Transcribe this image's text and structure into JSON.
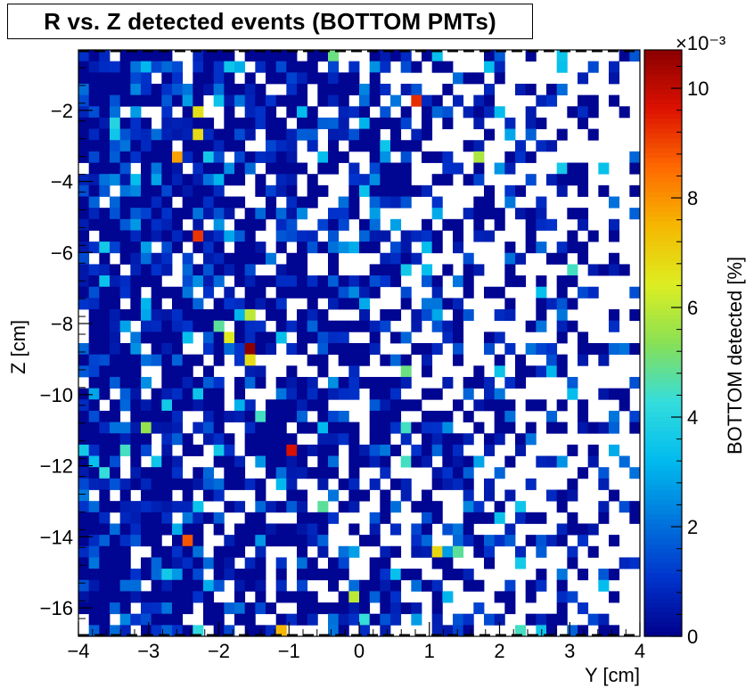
{
  "chart_data": {
    "type": "heatmap",
    "title": "R vs. Z detected events (BOTTOM PMTs)",
    "xlabel": "Y [cm]",
    "ylabel": "Z [cm]",
    "zlabel": "BOTTOM detected [%]",
    "z_multiplier": "×10⁻³",
    "xlim": [
      -4,
      4
    ],
    "ylim": [
      -16.8,
      -0.3
    ],
    "zlim": [
      0,
      0.0107
    ],
    "x_ticks": [
      -4,
      -3,
      -2,
      -1,
      0,
      1,
      2,
      3,
      4
    ],
    "x_tick_labels": [
      "−4",
      "−3",
      "−2",
      "−1",
      "0",
      "1",
      "2",
      "3",
      "4"
    ],
    "y_ticks": [
      -2,
      -4,
      -6,
      -8,
      -10,
      -12,
      -14,
      -16
    ],
    "y_tick_labels": [
      "−2",
      "−4",
      "−6",
      "−8",
      "−10",
      "−12",
      "−14",
      "−16"
    ],
    "z_ticks": [
      0,
      2,
      4,
      6,
      8,
      10
    ],
    "z_tick_labels": [
      "0",
      "2",
      "4",
      "6",
      "8",
      "10"
    ],
    "grid": false,
    "bins": {
      "nx": 54,
      "ny": 52
    },
    "colormap": [
      "#00008b",
      "#0033cc",
      "#0077dd",
      "#00bbee",
      "#33dddd",
      "#88e055",
      "#ddee22",
      "#f5b800",
      "#ff6a00",
      "#dd1100",
      "#8b0000"
    ],
    "hot_bins": [
      {
        "y": -1.55,
        "z": -8.72,
        "value": 0.0107
      },
      {
        "y": 0.85,
        "z": -1.78,
        "value": 0.0093
      },
      {
        "y": -2.35,
        "z": -5.38,
        "value": 0.0092
      },
      {
        "y": -0.9,
        "z": -11.67,
        "value": 0.0097
      },
      {
        "y": -2.5,
        "z": -14.05,
        "value": 0.0088
      },
      {
        "y": -2.65,
        "z": -3.42,
        "value": 0.0078
      },
      {
        "y": -1.05,
        "z": -16.72,
        "value": 0.0075
      },
      {
        "y": -2.3,
        "z": -2.07,
        "value": 0.0067
      },
      {
        "y": -2.3,
        "z": -2.7,
        "value": 0.0068
      },
      {
        "y": -1.9,
        "z": -8.4,
        "value": 0.0065
      },
      {
        "y": -1.55,
        "z": -9.05,
        "value": 0.0068
      },
      {
        "y": 1.05,
        "z": -14.55,
        "value": 0.0069
      },
      {
        "y": -1.5,
        "z": -7.6,
        "value": 0.006
      },
      {
        "y": -0.1,
        "z": -15.55,
        "value": 0.006
      },
      {
        "y": 1.7,
        "z": -3.35,
        "value": 0.0058
      },
      {
        "y": -3.1,
        "z": -11.05,
        "value": 0.0055
      },
      {
        "y": -0.35,
        "z": -0.55,
        "value": 0.005
      },
      {
        "y": 0.6,
        "z": -9.4,
        "value": 0.005
      },
      {
        "y": -0.45,
        "z": -13.25,
        "value": 0.0048
      },
      {
        "y": 3.05,
        "z": -6.35,
        "value": 0.0045
      },
      {
        "y": 2.35,
        "z": -16.72,
        "value": 0.0045
      },
      {
        "y": 0.7,
        "z": -12.0,
        "value": 0.0045
      },
      {
        "y": 0.7,
        "z": -11.05,
        "value": 0.0045
      },
      {
        "y": 1.35,
        "z": -14.5,
        "value": 0.0048
      },
      {
        "y": 0.05,
        "z": -16.2,
        "value": 0.0043
      },
      {
        "y": -2.35,
        "z": -16.72,
        "value": 0.0042
      },
      {
        "y": -3.4,
        "z": -11.55,
        "value": 0.0045
      },
      {
        "y": -1.35,
        "z": -10.72,
        "value": 0.0045
      },
      {
        "y": -3.6,
        "z": -12.05,
        "value": 0.0043
      },
      {
        "y": -2.05,
        "z": -8.05,
        "value": 0.0048
      },
      {
        "y": -3.45,
        "z": -2.35,
        "value": 0.004
      },
      {
        "y": -3.7,
        "z": -5.72,
        "value": 0.0036
      },
      {
        "y": -2.15,
        "z": -3.42,
        "value": 0.0036
      },
      {
        "y": -1.85,
        "z": -0.9,
        "value": 0.0035
      },
      {
        "y": 0.65,
        "z": -6.38,
        "value": 0.0036
      },
      {
        "y": 0.95,
        "z": -6.38,
        "value": 0.0033
      },
      {
        "y": 2.85,
        "z": -0.55,
        "value": 0.0035
      },
      {
        "y": -0.45,
        "z": -11.05,
        "value": 0.0032
      },
      {
        "y": -3.15,
        "z": -4.05,
        "value": 0.0033
      },
      {
        "y": -2.05,
        "z": -1.7,
        "value": 0.0034
      },
      {
        "y": -2.8,
        "z": -15.2,
        "value": 0.0036
      },
      {
        "y": 0.0,
        "z": -4.4,
        "value": 0.0034
      },
      {
        "y": 0.9,
        "z": -5.72,
        "value": 0.0033
      }
    ]
  }
}
